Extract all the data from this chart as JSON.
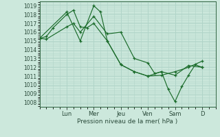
{
  "background_color": "#cce8dc",
  "plot_bg_color": "#cce8dc",
  "grid_color": "#b0d4c8",
  "line_color": "#1a6b2a",
  "marker_color": "#1a6b2a",
  "xlabel": "Pression niveau de la mer( hPa )",
  "ylim": [
    1007.5,
    1019.5
  ],
  "yticks": [
    1008,
    1009,
    1010,
    1011,
    1012,
    1013,
    1014,
    1015,
    1016,
    1017,
    1018,
    1019
  ],
  "day_labels": [
    "Lun",
    "Mer",
    "Jeu",
    "Ven",
    "Sam",
    "D"
  ],
  "day_positions": [
    24,
    48,
    72,
    96,
    120,
    144
  ],
  "xlim": [
    0,
    156
  ],
  "series": [
    {
      "x": [
        0,
        6,
        12,
        24,
        30,
        36,
        42,
        48,
        60,
        72,
        84,
        96,
        108,
        120,
        132,
        144
      ],
      "y": [
        1015.3,
        1015.5,
        1016.5,
        1018.0,
        1018.5,
        1016.6,
        1016.5,
        1017.0,
        1015.0,
        1012.3,
        1011.5,
        1011.0,
        1011.5,
        1011.1,
        1012.2,
        1012.0
      ]
    },
    {
      "x": [
        0,
        6,
        24,
        30,
        36,
        48,
        60,
        72,
        84,
        96,
        102,
        108,
        114,
        120,
        126,
        132,
        138,
        144
      ],
      "y": [
        1015.3,
        1015.2,
        1016.6,
        1017.0,
        1016.0,
        1017.8,
        1015.8,
        1016.0,
        1013.0,
        1012.5,
        1011.3,
        1011.5,
        1009.5,
        1008.1,
        1009.8,
        1011.1,
        1012.3,
        1012.0
      ]
    },
    {
      "x": [
        0,
        24,
        36,
        48,
        54,
        60,
        72,
        84,
        96,
        108,
        120,
        132,
        144
      ],
      "y": [
        1015.3,
        1018.3,
        1015.0,
        1019.0,
        1018.3,
        1015.0,
        1012.3,
        1011.5,
        1011.0,
        1011.1,
        1011.5,
        1012.0,
        1012.7
      ]
    }
  ]
}
